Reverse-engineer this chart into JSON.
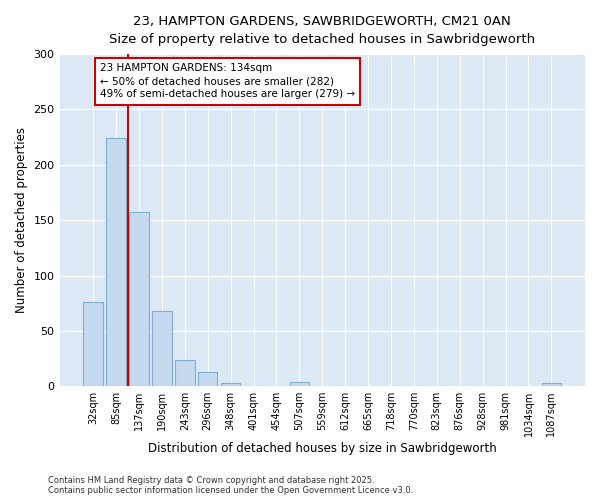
{
  "title_line1": "23, HAMPTON GARDENS, SAWBRIDGEWORTH, CM21 0AN",
  "title_line2": "Size of property relative to detached houses in Sawbridgeworth",
  "xlabel": "Distribution of detached houses by size in Sawbridgeworth",
  "ylabel": "Number of detached properties",
  "categories": [
    "32sqm",
    "85sqm",
    "137sqm",
    "190sqm",
    "243sqm",
    "296sqm",
    "348sqm",
    "401sqm",
    "454sqm",
    "507sqm",
    "559sqm",
    "612sqm",
    "665sqm",
    "718sqm",
    "770sqm",
    "823sqm",
    "876sqm",
    "928sqm",
    "981sqm",
    "1034sqm",
    "1087sqm"
  ],
  "values": [
    76,
    224,
    157,
    68,
    24,
    13,
    3,
    0,
    0,
    4,
    0,
    0,
    0,
    0,
    0,
    0,
    0,
    0,
    0,
    0,
    3
  ],
  "bar_color": "#c5d9ef",
  "bar_edge_color": "#7fafd4",
  "plot_bg_color": "#dce9f5",
  "fig_bg_color": "#ffffff",
  "vline_color": "#cc0000",
  "vline_x_index": 1.5,
  "annotation_text": "23 HAMPTON GARDENS: 134sqm\n← 50% of detached houses are smaller (282)\n49% of semi-detached houses are larger (279) →",
  "annotation_box_facecolor": "#ffffff",
  "annotation_box_edgecolor": "#cc0000",
  "ylim": [
    0,
    300
  ],
  "yticks": [
    0,
    50,
    100,
    150,
    200,
    250,
    300
  ],
  "footer_line1": "Contains HM Land Registry data © Crown copyright and database right 2025.",
  "footer_line2": "Contains public sector information licensed under the Open Government Licence v3.0."
}
